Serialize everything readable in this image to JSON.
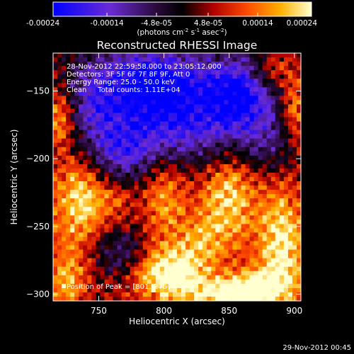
{
  "chart_data": {
    "type": "heatmap",
    "title": "Reconstructed RHESSI Image",
    "xlabel": "Heliocentric X (arcsec)",
    "ylabel": "Heliocentric Y (arcsec)",
    "xlim": [
      715,
      905
    ],
    "ylim": [
      -305,
      -122
    ],
    "x_ticks": [
      750,
      800,
      850,
      900
    ],
    "y_ticks": [
      -150,
      -200,
      -250,
      -300
    ],
    "colorbar": {
      "range": [
        -0.00024,
        0.00024
      ],
      "tick_values": [
        -0.00024,
        -0.00014,
        -4.8e-05,
        4.8e-05,
        0.00014,
        0.00024
      ],
      "tick_labels": [
        "-0.00024",
        "-0.00014",
        "-4.8e-05",
        "4.8e-05",
        "0.00014",
        "0.00024"
      ],
      "units_parts": [
        "(photons cm",
        "-2",
        " s",
        "-1",
        " asec",
        "-2",
        ")"
      ],
      "colormap": [
        "#0000ff",
        "#6a2bd6",
        "#2a0a3a",
        "#000000",
        "#b00000",
        "#ff4a00",
        "#ffb000",
        "#ffffd0"
      ]
    },
    "annotations": [
      "28-Nov-2012 22:59:58.000 to 23:05:12.000",
      "Detectors: 3F 5F 6F 7F 8F 9F, Att 0",
      "Energy Range: 25.0 - 50.0 keV",
      "Clean     Total counts: 1.11E+04"
    ],
    "peak_label": "Position of Peak = [801,-275]",
    "footer_date": "29-Nov-2012 00:45",
    "heatmap_features": [
      {
        "x": 815,
        "y": -165,
        "value": -0.00024,
        "sx": 45,
        "sy": 28
      },
      {
        "x": 790,
        "y": -140,
        "value": -0.00017,
        "sx": 25,
        "sy": 18
      },
      {
        "x": 860,
        "y": -150,
        "value": -0.00018,
        "sx": 18,
        "sy": 20
      },
      {
        "x": 745,
        "y": -155,
        "value": -0.00012,
        "sx": 18,
        "sy": 28
      },
      {
        "x": 770,
        "y": -195,
        "value": -0.00013,
        "sx": 28,
        "sy": 18
      },
      {
        "x": 765,
        "y": -270,
        "value": -0.00012,
        "sx": 20,
        "sy": 15
      },
      {
        "x": 885,
        "y": -190,
        "value": -9e-05,
        "sx": 15,
        "sy": 15
      },
      {
        "x": 805,
        "y": -285,
        "value": 0.00024,
        "sx": 20,
        "sy": 14
      },
      {
        "x": 735,
        "y": -230,
        "value": 0.00018,
        "sx": 14,
        "sy": 30
      },
      {
        "x": 720,
        "y": -170,
        "value": 0.00015,
        "sx": 8,
        "sy": 15
      },
      {
        "x": 800,
        "y": -225,
        "value": 0.00014,
        "sx": 12,
        "sy": 25
      },
      {
        "x": 848,
        "y": -228,
        "value": 0.00017,
        "sx": 16,
        "sy": 22
      },
      {
        "x": 890,
        "y": -265,
        "value": 0.00019,
        "sx": 14,
        "sy": 30
      },
      {
        "x": 870,
        "y": -295,
        "value": 0.00018,
        "sx": 18,
        "sy": 10
      },
      {
        "x": 845,
        "y": -300,
        "value": 0.00014,
        "sx": 20,
        "sy": 8
      },
      {
        "x": 830,
        "y": -260,
        "value": 9e-05,
        "sx": 15,
        "sy": 12
      },
      {
        "x": 725,
        "y": -290,
        "value": 0.00012,
        "sx": 12,
        "sy": 15
      },
      {
        "x": 880,
        "y": -135,
        "value": 0.0001,
        "sx": 12,
        "sy": 10
      },
      {
        "x": 900,
        "y": -165,
        "value": 0.00014,
        "sx": 8,
        "sy": 20
      },
      {
        "x": 760,
        "y": -230,
        "value": 8e-05,
        "sx": 12,
        "sy": 10
      }
    ]
  }
}
